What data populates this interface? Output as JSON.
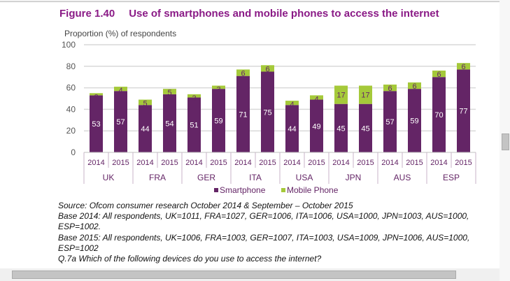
{
  "chart_data": {
    "type": "bar",
    "stacked": true,
    "title_number": "Figure 1.40",
    "title": "Use of smartphones and mobile phones to access the internet",
    "ylabel": "Proportion (%) of respondents",
    "ylim": [
      0,
      100
    ],
    "yticks": [
      0,
      20,
      40,
      60,
      80,
      100
    ],
    "grid": true,
    "groups": [
      "UK",
      "FRA",
      "GER",
      "ITA",
      "USA",
      "JPN",
      "AUS",
      "ESP"
    ],
    "years": [
      "2014",
      "2015"
    ],
    "series": [
      {
        "name": "Smartphone",
        "color": "#642566",
        "values": [
          53,
          57,
          44,
          54,
          51,
          59,
          71,
          75,
          44,
          49,
          45,
          45,
          57,
          59,
          70,
          77
        ]
      },
      {
        "name": "Mobile Phone",
        "color": "#a5c93a",
        "values": [
          2,
          4,
          5,
          5,
          3,
          3,
          6,
          6,
          4,
          4,
          17,
          17,
          6,
          6,
          6,
          6
        ]
      }
    ],
    "legend": "bottom"
  },
  "notes": [
    "Source: Ofcom consumer research October 2014 & September – October 2015",
    "Base 2014: All respondents, UK=1011, FRA=1027, GER=1006, ITA=1006, USA=1000, JPN=1003, AUS=1000, ESP=1002.",
    "Base 2015: All respondents, UK=1006, FRA=1003, GER=1007, ITA=1003, USA=1009, JPN=1006, AUS=1000, ESP=1002",
    "Q.7a Which of the following devices do you use to access the internet?"
  ]
}
